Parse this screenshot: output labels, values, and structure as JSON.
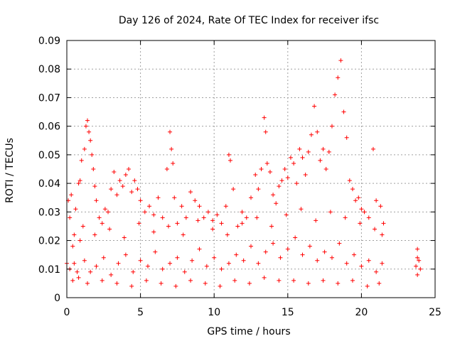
{
  "chart_data": {
    "type": "scatter",
    "title": "Day 126 of 2024, Rate Of TEC Index for receiver ifsc",
    "xlabel": "GPS time / hours",
    "ylabel": "ROTI / TECUs",
    "xlim": [
      0,
      25
    ],
    "ylim": [
      0,
      0.09
    ],
    "x_ticks": [
      "0",
      "5",
      "10",
      "15",
      "20",
      "25"
    ],
    "y_ticks": [
      "0",
      "0.01",
      "0.02",
      "0.03",
      "0.04",
      "0.05",
      "0.06",
      "0.07",
      "0.08",
      "0.09"
    ],
    "grid": true,
    "marker": "plus",
    "color": "#ff0000",
    "series": [
      {
        "points": [
          [
            0.0,
            0.012
          ],
          [
            0.1,
            0.034
          ],
          [
            0.2,
            0.028
          ],
          [
            0.3,
            0.036
          ],
          [
            0.4,
            0.018
          ],
          [
            0.5,
            0.022
          ],
          [
            0.6,
            0.031
          ],
          [
            0.7,
            0.009
          ],
          [
            0.8,
            0.04
          ],
          [
            0.9,
            0.041
          ],
          [
            1.0,
            0.048
          ],
          [
            1.1,
            0.025
          ],
          [
            1.2,
            0.052
          ],
          [
            1.3,
            0.06
          ],
          [
            1.4,
            0.062
          ],
          [
            1.5,
            0.058
          ],
          [
            1.6,
            0.055
          ],
          [
            1.7,
            0.05
          ],
          [
            1.8,
            0.045
          ],
          [
            1.9,
            0.039
          ],
          [
            2.0,
            0.034
          ],
          [
            2.2,
            0.028
          ],
          [
            2.4,
            0.026
          ],
          [
            2.6,
            0.031
          ],
          [
            2.8,
            0.03
          ],
          [
            3.0,
            0.038
          ],
          [
            3.2,
            0.044
          ],
          [
            3.4,
            0.036
          ],
          [
            3.6,
            0.041
          ],
          [
            3.8,
            0.039
          ],
          [
            4.0,
            0.043
          ],
          [
            4.2,
            0.045
          ],
          [
            4.4,
            0.037
          ],
          [
            4.6,
            0.041
          ],
          [
            4.8,
            0.038
          ],
          [
            5.0,
            0.034
          ],
          [
            5.3,
            0.03
          ],
          [
            5.6,
            0.032
          ],
          [
            5.9,
            0.029
          ],
          [
            6.2,
            0.035
          ],
          [
            6.5,
            0.028
          ],
          [
            6.8,
            0.045
          ],
          [
            7.0,
            0.058
          ],
          [
            7.1,
            0.052
          ],
          [
            7.2,
            0.047
          ],
          [
            7.3,
            0.035
          ],
          [
            7.5,
            0.026
          ],
          [
            7.8,
            0.032
          ],
          [
            8.1,
            0.028
          ],
          [
            8.4,
            0.037
          ],
          [
            8.7,
            0.034
          ],
          [
            9.0,
            0.032
          ],
          [
            9.3,
            0.028
          ],
          [
            9.6,
            0.03
          ],
          [
            9.9,
            0.027
          ],
          [
            10.2,
            0.029
          ],
          [
            10.5,
            0.026
          ],
          [
            10.8,
            0.032
          ],
          [
            11.0,
            0.05
          ],
          [
            11.1,
            0.048
          ],
          [
            11.3,
            0.038
          ],
          [
            11.6,
            0.025
          ],
          [
            11.9,
            0.03
          ],
          [
            12.2,
            0.028
          ],
          [
            12.5,
            0.035
          ],
          [
            12.8,
            0.043
          ],
          [
            13.0,
            0.038
          ],
          [
            13.2,
            0.045
          ],
          [
            13.4,
            0.063
          ],
          [
            13.5,
            0.058
          ],
          [
            13.6,
            0.047
          ],
          [
            13.8,
            0.044
          ],
          [
            14.0,
            0.036
          ],
          [
            14.2,
            0.033
          ],
          [
            14.4,
            0.039
          ],
          [
            14.6,
            0.041
          ],
          [
            14.8,
            0.045
          ],
          [
            15.0,
            0.042
          ],
          [
            15.2,
            0.049
          ],
          [
            15.4,
            0.047
          ],
          [
            15.6,
            0.04
          ],
          [
            15.8,
            0.052
          ],
          [
            16.0,
            0.049
          ],
          [
            16.2,
            0.043
          ],
          [
            16.4,
            0.051
          ],
          [
            16.6,
            0.057
          ],
          [
            16.8,
            0.067
          ],
          [
            17.0,
            0.058
          ],
          [
            17.2,
            0.048
          ],
          [
            17.4,
            0.052
          ],
          [
            17.6,
            0.045
          ],
          [
            17.8,
            0.051
          ],
          [
            18.0,
            0.06
          ],
          [
            18.2,
            0.071
          ],
          [
            18.4,
            0.077
          ],
          [
            18.6,
            0.083
          ],
          [
            18.8,
            0.065
          ],
          [
            19.0,
            0.056
          ],
          [
            19.2,
            0.041
          ],
          [
            19.4,
            0.038
          ],
          [
            19.6,
            0.034
          ],
          [
            19.8,
            0.035
          ],
          [
            20.0,
            0.031
          ],
          [
            20.2,
            0.03
          ],
          [
            20.5,
            0.028
          ],
          [
            20.8,
            0.052
          ],
          [
            21.0,
            0.034
          ],
          [
            21.3,
            0.032
          ],
          [
            21.5,
            0.026
          ],
          [
            23.8,
            0.017
          ],
          [
            0.2,
            0.01
          ],
          [
            0.5,
            0.012
          ],
          [
            0.8,
            0.007
          ],
          [
            1.2,
            0.013
          ],
          [
            1.6,
            0.009
          ],
          [
            2.0,
            0.011
          ],
          [
            2.5,
            0.014
          ],
          [
            3.0,
            0.008
          ],
          [
            3.5,
            0.012
          ],
          [
            4.0,
            0.015
          ],
          [
            4.5,
            0.009
          ],
          [
            5.0,
            0.013
          ],
          [
            5.5,
            0.011
          ],
          [
            6.0,
            0.016
          ],
          [
            6.5,
            0.01
          ],
          [
            7.0,
            0.012
          ],
          [
            7.5,
            0.014
          ],
          [
            8.0,
            0.009
          ],
          [
            8.5,
            0.013
          ],
          [
            9.0,
            0.017
          ],
          [
            9.5,
            0.011
          ],
          [
            10.0,
            0.014
          ],
          [
            10.5,
            0.01
          ],
          [
            11.0,
            0.012
          ],
          [
            11.5,
            0.015
          ],
          [
            12.0,
            0.013
          ],
          [
            12.5,
            0.018
          ],
          [
            13.0,
            0.012
          ],
          [
            13.5,
            0.016
          ],
          [
            14.0,
            0.019
          ],
          [
            14.5,
            0.014
          ],
          [
            15.0,
            0.017
          ],
          [
            15.5,
            0.021
          ],
          [
            16.0,
            0.015
          ],
          [
            16.5,
            0.018
          ],
          [
            17.0,
            0.013
          ],
          [
            17.5,
            0.016
          ],
          [
            18.0,
            0.014
          ],
          [
            18.5,
            0.019
          ],
          [
            19.0,
            0.012
          ],
          [
            19.5,
            0.015
          ],
          [
            20.0,
            0.011
          ],
          [
            20.5,
            0.013
          ],
          [
            21.0,
            0.009
          ],
          [
            21.4,
            0.012
          ],
          [
            23.7,
            0.011
          ],
          [
            23.8,
            0.008
          ],
          [
            23.9,
            0.013
          ],
          [
            24.0,
            0.01
          ],
          [
            23.8,
            0.014
          ],
          [
            0.4,
            0.006
          ],
          [
            1.4,
            0.005
          ],
          [
            2.4,
            0.006
          ],
          [
            3.4,
            0.005
          ],
          [
            4.4,
            0.004
          ],
          [
            5.4,
            0.006
          ],
          [
            6.4,
            0.005
          ],
          [
            7.4,
            0.004
          ],
          [
            8.4,
            0.006
          ],
          [
            9.4,
            0.005
          ],
          [
            10.4,
            0.004
          ],
          [
            11.4,
            0.006
          ],
          [
            12.4,
            0.005
          ],
          [
            13.4,
            0.007
          ],
          [
            14.4,
            0.006
          ],
          [
            15.4,
            0.006
          ],
          [
            16.4,
            0.005
          ],
          [
            17.4,
            0.006
          ],
          [
            18.4,
            0.005
          ],
          [
            19.4,
            0.006
          ],
          [
            20.4,
            0.004
          ],
          [
            21.2,
            0.005
          ],
          [
            0.9,
            0.02
          ],
          [
            1.9,
            0.022
          ],
          [
            2.9,
            0.024
          ],
          [
            3.9,
            0.021
          ],
          [
            4.9,
            0.026
          ],
          [
            5.9,
            0.023
          ],
          [
            6.9,
            0.025
          ],
          [
            7.9,
            0.022
          ],
          [
            8.9,
            0.027
          ],
          [
            9.9,
            0.024
          ],
          [
            10.9,
            0.022
          ],
          [
            11.9,
            0.026
          ],
          [
            12.9,
            0.028
          ],
          [
            13.9,
            0.025
          ],
          [
            14.9,
            0.029
          ],
          [
            15.9,
            0.031
          ],
          [
            16.9,
            0.027
          ],
          [
            17.9,
            0.03
          ],
          [
            18.9,
            0.028
          ],
          [
            19.9,
            0.026
          ],
          [
            20.9,
            0.024
          ],
          [
            21.4,
            0.022
          ]
        ]
      }
    ]
  }
}
